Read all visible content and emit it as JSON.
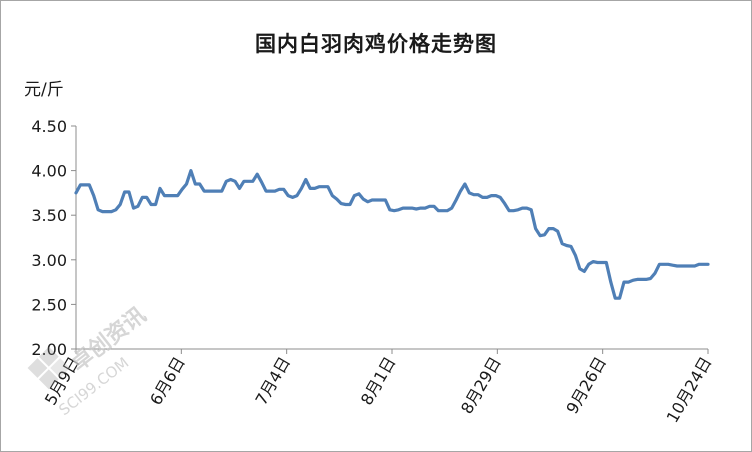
{
  "chart_data": {
    "type": "line",
    "title": "国内白羽肉鸡价格走势图",
    "ylabel": "元/斤",
    "ylim": [
      2.0,
      4.5
    ],
    "yticks": [
      2.0,
      2.5,
      3.0,
      3.5,
      4.0,
      4.5
    ],
    "ytick_labels": [
      "2.00",
      "2.50",
      "3.00",
      "3.50",
      "4.00",
      "4.50"
    ],
    "xticks": [
      "5月9日",
      "6月6日",
      "7月4日",
      "8月1日",
      "8月29日",
      "9月26日",
      "10月24日"
    ],
    "grid": false,
    "legend": "none",
    "series": [
      {
        "color": "#4f7fb6",
        "values": [
          3.75,
          3.84,
          3.84,
          3.84,
          3.72,
          3.56,
          3.54,
          3.54,
          3.54,
          3.56,
          3.62,
          3.76,
          3.76,
          3.58,
          3.6,
          3.7,
          3.7,
          3.62,
          3.62,
          3.8,
          3.72,
          3.72,
          3.72,
          3.72,
          3.79,
          3.85,
          4.0,
          3.85,
          3.85,
          3.77,
          3.77,
          3.77,
          3.77,
          3.77,
          3.88,
          3.9,
          3.88,
          3.8,
          3.88,
          3.88,
          3.88,
          3.96,
          3.87,
          3.77,
          3.77,
          3.77,
          3.79,
          3.79,
          3.72,
          3.7,
          3.72,
          3.8,
          3.9,
          3.8,
          3.8,
          3.82,
          3.82,
          3.82,
          3.72,
          3.68,
          3.63,
          3.62,
          3.62,
          3.72,
          3.74,
          3.68,
          3.65,
          3.67,
          3.67,
          3.67,
          3.67,
          3.56,
          3.55,
          3.56,
          3.58,
          3.58,
          3.58,
          3.57,
          3.58,
          3.58,
          3.6,
          3.6,
          3.55,
          3.55,
          3.55,
          3.58,
          3.67,
          3.77,
          3.85,
          3.75,
          3.73,
          3.73,
          3.7,
          3.7,
          3.72,
          3.72,
          3.7,
          3.63,
          3.55,
          3.55,
          3.56,
          3.58,
          3.58,
          3.56,
          3.35,
          3.27,
          3.28,
          3.35,
          3.35,
          3.32,
          3.18,
          3.16,
          3.15,
          3.05,
          2.9,
          2.87,
          2.95,
          2.98,
          2.97,
          2.97,
          2.97,
          2.75,
          2.57,
          2.57,
          2.75,
          2.75,
          2.77,
          2.78,
          2.78,
          2.78,
          2.79,
          2.85,
          2.95,
          2.95,
          2.95,
          2.94,
          2.93,
          2.93,
          2.93,
          2.93,
          2.93,
          2.95,
          2.95,
          2.95
        ]
      }
    ]
  },
  "watermark": {
    "text": "卓创资讯",
    "url": "SCI99.COM"
  }
}
